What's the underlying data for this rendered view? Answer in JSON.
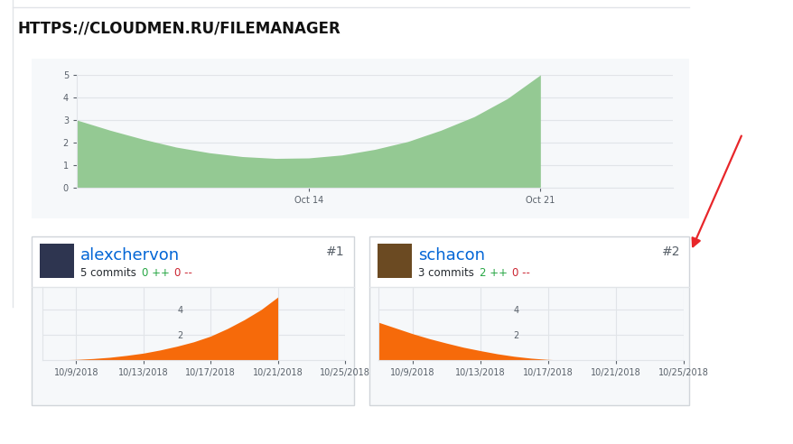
{
  "header": {
    "text": "HTTPS://CLOUDMEN.RU/FILEMANAGER"
  },
  "chart_data": [
    {
      "type": "area",
      "categories": [
        null,
        null,
        null,
        null,
        null,
        null,
        null,
        "Oct 14",
        null,
        null,
        null,
        null,
        null,
        null,
        "Oct 21",
        null,
        null,
        null,
        null
      ],
      "values": [
        3.0,
        2.55,
        2.15,
        1.8,
        1.55,
        1.38,
        1.3,
        1.32,
        1.45,
        1.7,
        2.05,
        2.55,
        3.15,
        3.95,
        5.0,
        null,
        null,
        null,
        null
      ],
      "color": "#94c993",
      "ylim": [
        0,
        5
      ],
      "yticks": [
        0,
        1,
        2,
        3,
        4,
        5
      ],
      "grid": true
    },
    {
      "type": "area",
      "title": "alexchervon",
      "subtitle": "5 commits",
      "annotations": [
        "0 ++",
        "0 --",
        "#1"
      ],
      "categories": [
        null,
        null,
        "10/9/2018",
        null,
        null,
        null,
        "10/13/2018",
        null,
        null,
        null,
        "10/17/2018",
        null,
        null,
        null,
        "10/21/2018",
        null,
        null,
        null,
        "10/25/2018"
      ],
      "values": [
        0,
        0.02,
        0.05,
        0.12,
        0.22,
        0.37,
        0.55,
        0.8,
        1.1,
        1.45,
        1.9,
        2.5,
        3.2,
        4.0,
        5.0,
        null,
        null,
        null,
        null
      ],
      "color": "#f66a0a",
      "ylim": [
        0,
        5.8
      ],
      "yticks": [
        2,
        4
      ],
      "grid": true
    },
    {
      "type": "area",
      "title": "schacon",
      "subtitle": "3 commits",
      "annotations": [
        "2 ++",
        "0 --",
        "#2"
      ],
      "categories": [
        null,
        null,
        "10/9/2018",
        null,
        null,
        null,
        "10/13/2018",
        null,
        null,
        null,
        "10/17/2018",
        null,
        null,
        null,
        "10/21/2018",
        null,
        null,
        null,
        "10/25/2018"
      ],
      "values": [
        3.0,
        2.55,
        2.1,
        1.7,
        1.35,
        1.02,
        0.75,
        0.5,
        0.3,
        0.15,
        0.05,
        0,
        0,
        0,
        0,
        null,
        null,
        null,
        null
      ],
      "color": "#f66a0a",
      "ylim": [
        0,
        5.8
      ],
      "yticks": [
        2,
        4
      ],
      "grid": true
    }
  ]
}
